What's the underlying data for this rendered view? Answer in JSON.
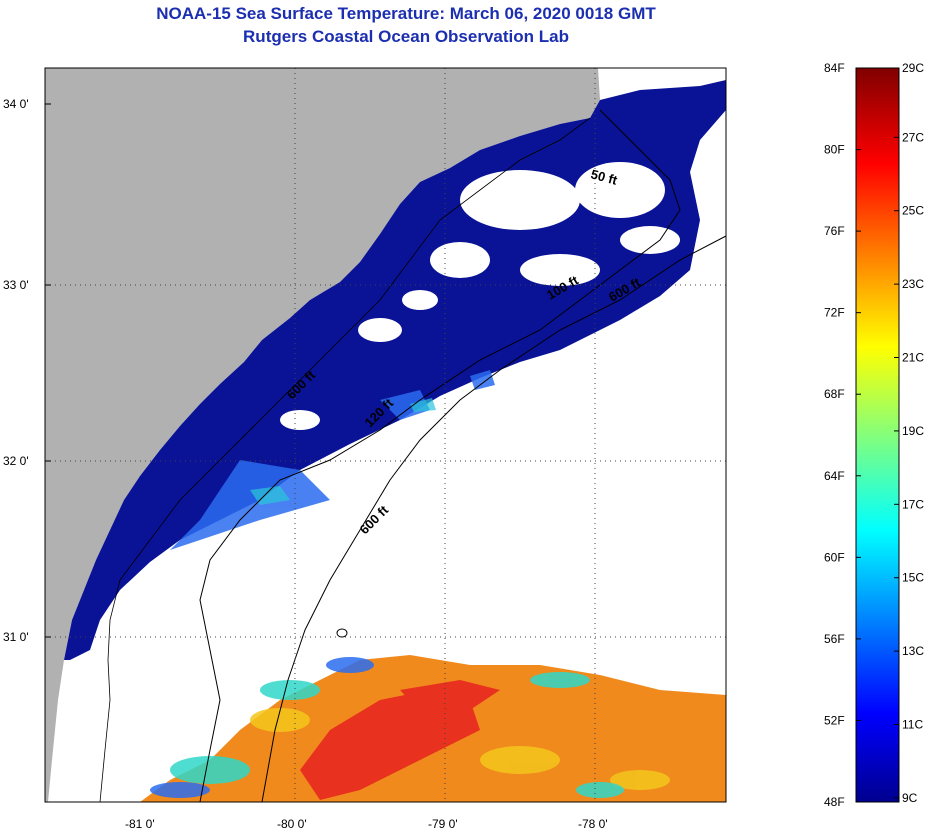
{
  "title": {
    "line1": "NOAA-15 Sea Surface Temperature:  March 06, 2020 0018 GMT",
    "line2": "Rutgers Coastal Ocean Observation Lab"
  },
  "map": {
    "lon_ticks": [
      "-81 0'",
      "-80 0'",
      "-79 0'",
      "-78 0'"
    ],
    "lat_ticks": [
      "34 0'",
      "33 0'",
      "32 0'",
      "31 0'"
    ],
    "contours": [
      "50 ft",
      "100 ft",
      "600 ft",
      "120 ft",
      "600 ft",
      "600 ft"
    ],
    "colors": {
      "land": "#b1b1b1",
      "cold": "#00108e",
      "mid": "#2a6cf0",
      "warm": "#f07b14",
      "hot": "#e8311e"
    }
  },
  "colorbar": {
    "f_labels": [
      "84F",
      "80F",
      "76F",
      "72F",
      "68F",
      "64F",
      "60F",
      "56F",
      "52F",
      "48F"
    ],
    "c_labels": [
      "29C",
      "27C",
      "25C",
      "23C",
      "21C",
      "19C",
      "17C",
      "15C",
      "13C",
      "11C",
      "9C"
    ]
  }
}
